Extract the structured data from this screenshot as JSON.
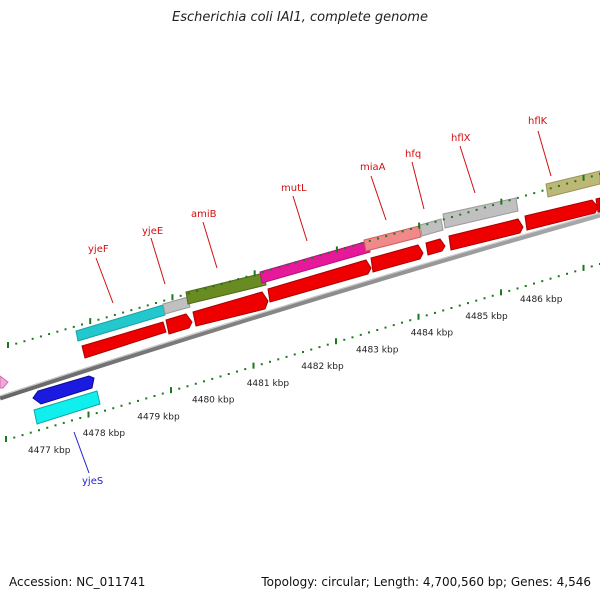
{
  "title": "Escherichia coli IAI1, complete genome",
  "footer": {
    "accession": "Accession: NC_011741",
    "stats": "Topology: circular; Length: 4,700,560 bp; Genes: 4,546"
  },
  "kbp_labels": [
    "4477 kbp",
    "4478 kbp",
    "4479 kbp",
    "4480 kbp",
    "4481 kbp",
    "4482 kbp",
    "4483 kbp",
    "4484 kbp",
    "4485 kbp",
    "4486 kbp"
  ],
  "gene_labels": [
    {
      "text": "yjeS",
      "color": "#1f1fd0"
    },
    {
      "text": "yjeF",
      "color": "#d01010"
    },
    {
      "text": "yjeE",
      "color": "#d01010"
    },
    {
      "text": "amiB",
      "color": "#d01010"
    },
    {
      "text": "mutL",
      "color": "#d01010"
    },
    {
      "text": "miaA",
      "color": "#d01010"
    },
    {
      "text": "hfq",
      "color": "#d01010"
    },
    {
      "text": "hflX",
      "color": "#d01010"
    },
    {
      "text": "hflK",
      "color": "#d01010"
    }
  ],
  "colors": {
    "backbone": "#777777",
    "tick": "#1a7a1a",
    "cds_red": "#ee0000",
    "cyan": "#22c8cc",
    "olive": "#6a8a22",
    "magenta": "#e5199a",
    "pink": "#f08a8a",
    "grey": "#c0c0c0",
    "khaki": "#bdb878",
    "blue": "#1a1ae0",
    "aqua": "#11eeee"
  }
}
